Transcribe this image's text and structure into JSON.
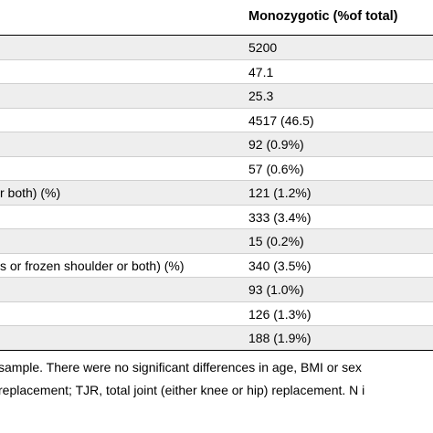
{
  "table": {
    "column_header": "Monozygotic (%of total)",
    "rows": [
      {
        "label": "",
        "value": "5200"
      },
      {
        "label": "",
        "value": "47.1"
      },
      {
        "label": "",
        "value": "25.3"
      },
      {
        "label": "",
        "value": "4517 (46.5)"
      },
      {
        "label": "",
        "value": "92 (0.9%)"
      },
      {
        "label": "",
        "value": "57 (0.6%)"
      },
      {
        "label": "r both) (%)",
        "value": "121 (1.2%)"
      },
      {
        "label": "",
        "value": "333 (3.4%)"
      },
      {
        "label": "",
        "value": "15 (0.2%)"
      },
      {
        "label": "s or frozen shoulder or both) (%)",
        "value": "340 (3.5%)"
      },
      {
        "label": "",
        "value": "93 (1.0%)"
      },
      {
        "label": "",
        "value": "126 (1.3%)"
      },
      {
        "label": "",
        "value": "188 (1.9%)"
      }
    ]
  },
  "footnotes": {
    "line1": "sample. There were no significant differences in age, BMI or sex",
    "line2": "replacement; TJR, total joint (either knee or hip) replacement. N i"
  }
}
